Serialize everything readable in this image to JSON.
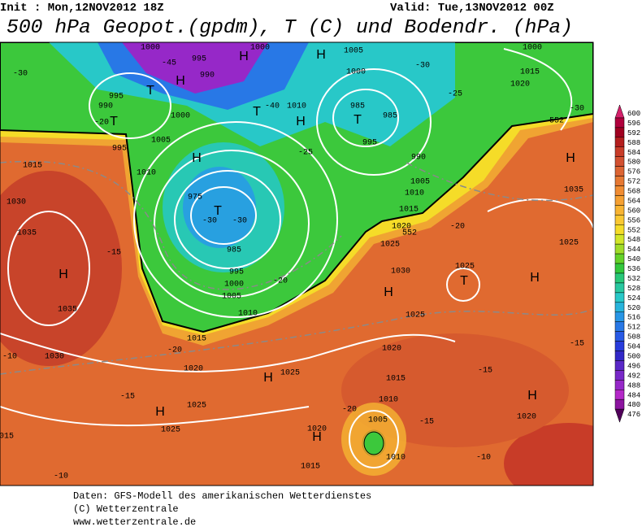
{
  "header": {
    "init": "Init : Mon,12NOV2012 18Z",
    "valid": "Valid: Tue,13NOV2012 00Z",
    "title": "500 hPa Geopot.(gpdm), T (C) und Bodendr. (hPa)"
  },
  "map": {
    "labels": [
      "1000",
      "-45",
      "995",
      "990",
      "H",
      "1000",
      "H",
      "1005",
      "1000",
      "-30",
      "1000",
      "1015",
      "1020",
      "-30",
      "995",
      "990",
      "T",
      "H",
      "T",
      "-20",
      "1000",
      "1005",
      "995",
      "1010",
      "T",
      "H",
      "1010",
      "-40",
      "985",
      "985",
      "T",
      "-25",
      "-30",
      "H",
      "-25",
      "995",
      "990",
      "1005",
      "1010",
      "975",
      "T",
      "-30",
      "-30",
      "985",
      "995",
      "1000",
      "1005",
      "1010",
      "1015",
      "-20",
      "1020",
      "1015",
      "1030",
      "1035",
      "H",
      "1035",
      "-15",
      "1030",
      "-10",
      "-15",
      "H",
      "1025",
      "1025",
      "H",
      "1025",
      "1015",
      "-10",
      "1020",
      "H",
      "1015",
      "-20",
      "1005",
      "1010",
      "1010",
      "-15",
      "-10",
      "H",
      "1020",
      "-15",
      "1015",
      "1020",
      "1025",
      "H",
      "1030",
      "1025",
      "1020",
      "1015",
      "-20",
      "-20",
      "1025",
      "T",
      "H",
      "1025",
      "1035",
      "H",
      "-15",
      "552",
      "552"
    ]
  },
  "colorbar": {
    "labels": [
      600,
      596,
      592,
      588,
      584,
      580,
      576,
      572,
      568,
      564,
      560,
      556,
      552,
      548,
      544,
      540,
      536,
      532,
      528,
      524,
      520,
      516,
      512,
      508,
      504,
      500,
      496,
      492,
      488,
      484,
      480,
      476
    ],
    "colors": [
      "#d4206a",
      "#b0003c",
      "#a00020",
      "#b41e1e",
      "#c83c28",
      "#d25030",
      "#dc6432",
      "#e67832",
      "#f08c32",
      "#f5a032",
      "#f8b432",
      "#fac832",
      "#f5dc28",
      "#d2e628",
      "#a0dc28",
      "#64d228",
      "#32c83c",
      "#28c878",
      "#28c8a0",
      "#28c8c8",
      "#28b4dc",
      "#2896e6",
      "#2878e6",
      "#285ae6",
      "#283cdc",
      "#3228c8",
      "#5a28c8",
      "#7828c8",
      "#9628c8",
      "#b428c8",
      "#8c14a0",
      "#50005a"
    ]
  },
  "footer": {
    "lines": [
      "Daten: GFS-Modell des amerikanischen Wetterdienstes",
      "(C) Wetterzentrale",
      "www.wetterzentrale.de"
    ]
  }
}
